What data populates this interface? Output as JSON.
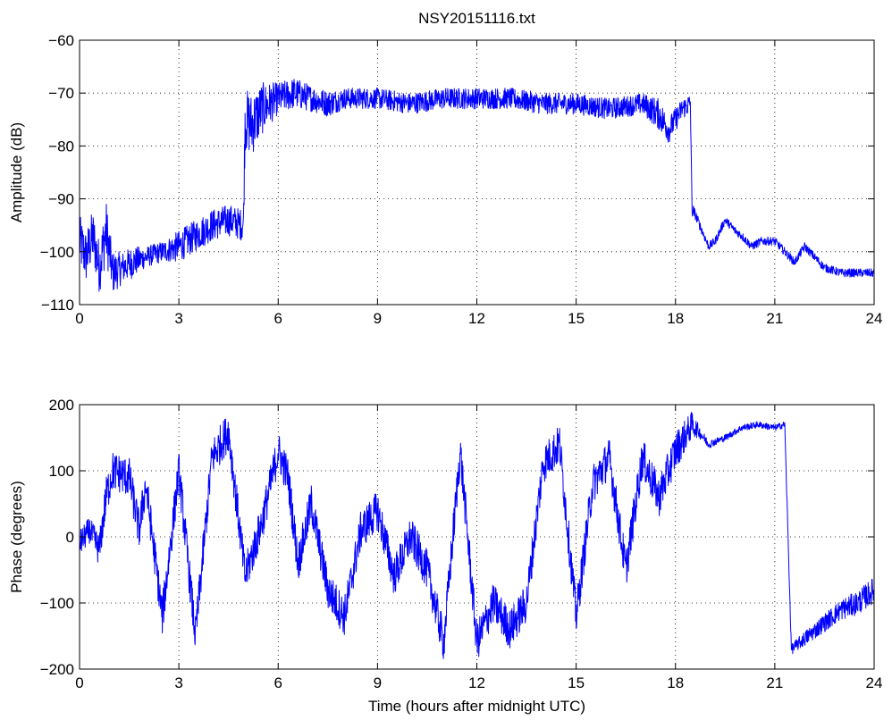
{
  "chart_data": [
    {
      "type": "line",
      "title": "NSY20151116.txt",
      "xlabel": "",
      "ylabel": "Amplitude (dB)",
      "xlim": [
        0,
        24
      ],
      "ylim": [
        -110,
        -60
      ],
      "xticks": [
        0,
        3,
        6,
        9,
        12,
        15,
        18,
        21,
        24
      ],
      "yticks": [
        -110,
        -100,
        -90,
        -80,
        -70,
        -60
      ],
      "grid": true,
      "series": [
        {
          "color": "#0000ff",
          "x": [
            0,
            0.2,
            0.4,
            0.6,
            0.8,
            1.0,
            1.3,
            1.6,
            2.0,
            2.5,
            3.0,
            3.5,
            4.0,
            4.5,
            4.95,
            5.0,
            5.2,
            5.5,
            6.0,
            6.5,
            7.0,
            7.5,
            8.0,
            9.0,
            10.0,
            11.0,
            12.0,
            13.0,
            14.0,
            15.0,
            16.0,
            17.0,
            17.5,
            17.8,
            18.2,
            18.45,
            18.5,
            18.6,
            18.8,
            19.0,
            19.2,
            19.5,
            19.8,
            20.0,
            20.3,
            20.6,
            21.0,
            21.3,
            21.6,
            21.9,
            22.2,
            22.5,
            23.0,
            23.5,
            24.0
          ],
          "y": [
            -98,
            -101,
            -97,
            -103,
            -96,
            -104,
            -103,
            -102,
            -101,
            -100,
            -99,
            -97,
            -95,
            -94,
            -95,
            -75,
            -76,
            -73,
            -71,
            -70,
            -71,
            -72,
            -71,
            -71,
            -72,
            -71,
            -71,
            -71,
            -72,
            -72,
            -73,
            -72,
            -74,
            -77,
            -73,
            -72,
            -92,
            -93,
            -96,
            -99,
            -98,
            -94,
            -96,
            -97,
            -99,
            -98,
            -98,
            -100,
            -102,
            -99,
            -101,
            -103,
            -104,
            -104,
            -104
          ],
          "noise": [
            5,
            5,
            5,
            5,
            6,
            4,
            3,
            3,
            2,
            2,
            3,
            3,
            3,
            3,
            3,
            6,
            6,
            5,
            3,
            3,
            2.5,
            2.5,
            2,
            2,
            2,
            2,
            2,
            2,
            2,
            2,
            2,
            2,
            3,
            2.5,
            2,
            2,
            1.5,
            1,
            0.8,
            0.8,
            0.8,
            0.8,
            0.8,
            0.8,
            0.8,
            0.8,
            0.8,
            0.8,
            0.8,
            0.8,
            0.8,
            0.8,
            0.8,
            0.8,
            0.8
          ]
        }
      ]
    },
    {
      "type": "line",
      "title": "",
      "xlabel": "Time (hours after midnight UTC)",
      "ylabel": "Phase (degrees)",
      "xlim": [
        0,
        24
      ],
      "ylim": [
        -200,
        200
      ],
      "xticks": [
        0,
        3,
        6,
        9,
        12,
        15,
        18,
        21,
        24
      ],
      "yticks": [
        -200,
        -100,
        0,
        100,
        200
      ],
      "grid": true,
      "series": [
        {
          "color": "#0000ff",
          "x": [
            0,
            0.3,
            0.6,
            0.8,
            1.0,
            1.5,
            1.8,
            2.0,
            2.5,
            3.0,
            3.5,
            4.0,
            4.5,
            5.0,
            5.5,
            6.0,
            6.3,
            6.6,
            7.0,
            7.5,
            8.0,
            8.5,
            9.0,
            9.5,
            10.0,
            10.5,
            11.0,
            11.5,
            12.0,
            12.5,
            13.0,
            13.5,
            14.0,
            14.5,
            15.0,
            15.5,
            16.0,
            16.5,
            17.0,
            17.5,
            18.0,
            18.5,
            18.7,
            19.0,
            19.5,
            20.0,
            20.5,
            21.0,
            21.3,
            21.5,
            22.0,
            22.5,
            23.0,
            23.5,
            24.0
          ],
          "y": [
            -10,
            10,
            -20,
            60,
            100,
            90,
            10,
            80,
            -120,
            100,
            -150,
            120,
            160,
            -60,
            20,
            130,
            90,
            -40,
            50,
            -80,
            -120,
            10,
            40,
            -60,
            0,
            -50,
            -160,
            130,
            -160,
            -100,
            -140,
            -100,
            110,
            140,
            -120,
            80,
            120,
            -50,
            120,
            60,
            130,
            170,
            160,
            140,
            150,
            165,
            170,
            165,
            170,
            -170,
            -150,
            -130,
            -110,
            -100,
            -80
          ],
          "noise": [
            20,
            20,
            25,
            30,
            30,
            30,
            30,
            30,
            30,
            30,
            30,
            30,
            30,
            30,
            30,
            30,
            30,
            30,
            30,
            30,
            30,
            30,
            30,
            30,
            30,
            30,
            30,
            30,
            30,
            30,
            30,
            30,
            30,
            30,
            30,
            30,
            30,
            30,
            30,
            30,
            30,
            20,
            10,
            6,
            5,
            5,
            5,
            5,
            5,
            8,
            12,
            14,
            16,
            18,
            20
          ]
        }
      ]
    }
  ]
}
